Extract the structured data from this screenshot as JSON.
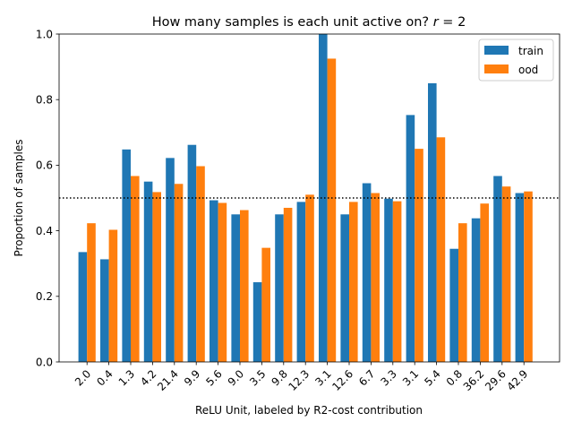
{
  "chart_data": {
    "type": "bar",
    "title": "How many samples is each unit active on? $r =$ 2",
    "title_plain": "How many samples is each unit active on? ",
    "title_math": "r = ",
    "title_num": "2",
    "xlabel": "ReLU Unit, labeled by R2-cost contribution",
    "ylabel": "Proportion of samples",
    "ylim": [
      0,
      1.0
    ],
    "yticks": [
      "0.0",
      "0.2",
      "0.4",
      "0.6",
      "0.8",
      "1.0"
    ],
    "reference_line": {
      "y": 0.5,
      "style": "dotted",
      "color": "#000000"
    },
    "categories": [
      "2.0",
      "0.4",
      "1.3",
      "4.2",
      "21.4",
      "9.9",
      "5.6",
      "9.0",
      "3.5",
      "9.8",
      "12.3",
      "3.1",
      "12.6",
      "6.7",
      "3.3",
      "3.1",
      "5.4",
      "0.8",
      "36.2",
      "29.6",
      "42.9"
    ],
    "series": [
      {
        "name": "train",
        "color": "#1f77b4",
        "values": [
          0.335,
          0.313,
          0.648,
          0.55,
          0.622,
          0.662,
          0.493,
          0.45,
          0.243,
          0.45,
          0.488,
          1.0,
          0.45,
          0.545,
          0.498,
          0.753,
          0.85,
          0.345,
          0.438,
          0.567,
          0.515
        ]
      },
      {
        "name": "ood",
        "color": "#ff7f0e",
        "values": [
          0.423,
          0.403,
          0.567,
          0.518,
          0.543,
          0.597,
          0.485,
          0.463,
          0.348,
          0.47,
          0.51,
          0.925,
          0.488,
          0.515,
          0.49,
          0.65,
          0.685,
          0.423,
          0.483,
          0.535,
          0.52
        ]
      }
    ],
    "legend_position": "top-right",
    "grid": false
  }
}
